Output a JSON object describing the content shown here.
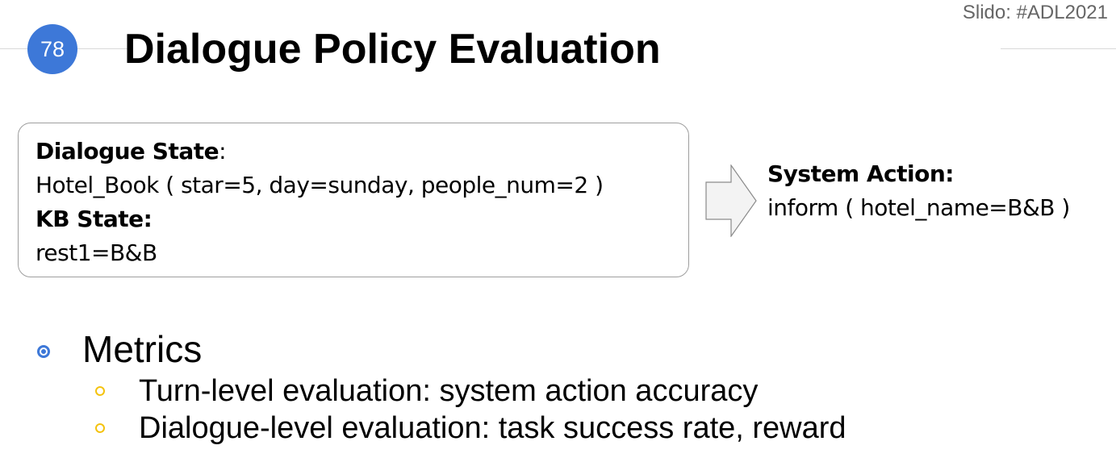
{
  "slide": {
    "tag": "Slido: #ADL2021",
    "page_number": "78",
    "title": "Dialogue Policy Evaluation"
  },
  "state_box": {
    "dialogue_state_label": "Dialogue State",
    "dialogue_state_colon": ":",
    "dialogue_state_value": "Hotel_Book ( star=5, day=sunday, people_num=2 )",
    "kb_state_label": "KB State:",
    "kb_state_value": "rest1=B&B"
  },
  "system_action": {
    "label": "System Action:",
    "value": "inform ( hotel_name=B&B )"
  },
  "metrics": {
    "heading": "Metrics",
    "items": [
      "Turn-level evaluation: system action accuracy",
      "Dialogue-level evaluation: task success rate, reward"
    ]
  },
  "colors": {
    "accent": "#3d78d8",
    "sub_bullet": "#f4c20d"
  }
}
